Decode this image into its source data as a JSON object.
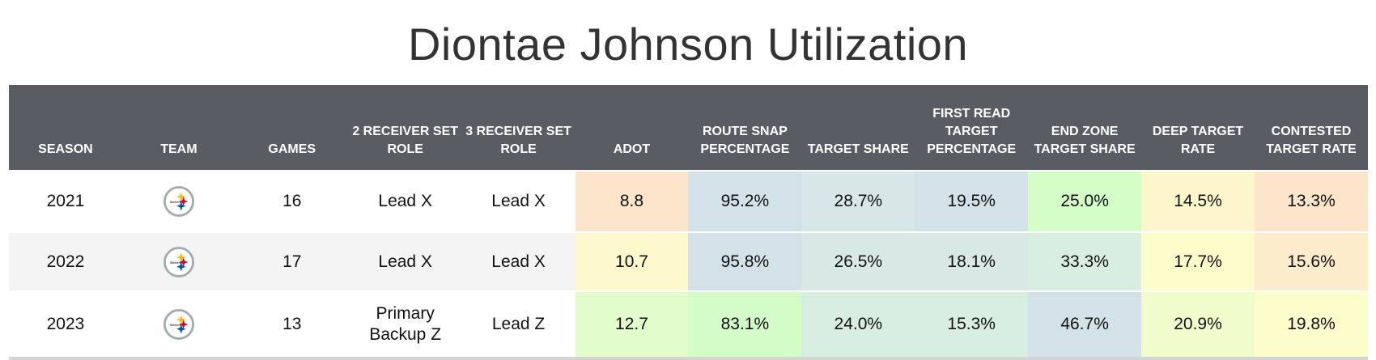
{
  "title": "Diontae Johnson Utilization",
  "columns": [
    "SEASON",
    "TEAM",
    "GAMES",
    "2 RECEIVER SET ROLE",
    "3 RECEIVER SET ROLE",
    "ADOT",
    "ROUTE SNAP PERCENTAGE",
    "TARGET SHARE",
    "FIRST READ TARGET PERCENTAGE",
    "END ZONE TARGET SHARE",
    "DEEP TARGET RATE",
    "CONTESTED TARGET RATE"
  ],
  "rows": [
    {
      "season": "2021",
      "team_icon": "steelers-logo",
      "games": "16",
      "role2": "Lead X",
      "role3": "Lead X",
      "adot": "8.8",
      "route": "95.2%",
      "target_share": "28.7%",
      "first_read": "19.5%",
      "end_zone": "25.0%",
      "deep": "14.5%",
      "contested": "13.3%",
      "colors": [
        "#fde5cc",
        "#d3e1e8",
        "#d7e6e6",
        "#d3e2e8",
        "#d4fdc8",
        "#fdf5cc",
        "#fde5cc"
      ]
    },
    {
      "season": "2022",
      "team_icon": "steelers-logo",
      "games": "17",
      "role2": "Lead X",
      "role3": "Lead X",
      "adot": "10.7",
      "route": "95.8%",
      "target_share": "26.5%",
      "first_read": "18.1%",
      "end_zone": "33.3%",
      "deep": "17.7%",
      "contested": "15.6%",
      "colors": [
        "#fdf9cc",
        "#d3e1e8",
        "#d8e8e4",
        "#d8e8e4",
        "#d8eee0",
        "#fdfdcc",
        "#fdeccc"
      ]
    },
    {
      "season": "2023",
      "team_icon": "steelers-logo",
      "games": "13",
      "role2": "Primary Backup Z",
      "role3": "Lead Z",
      "adot": "12.7",
      "route": "83.1%",
      "target_share": "24.0%",
      "first_read": "15.3%",
      "end_zone": "46.7%",
      "deep": "20.9%",
      "contested": "19.8%",
      "colors": [
        "#e3fccc",
        "#d4fcc8",
        "#d8eee0",
        "#d8eee0",
        "#d3e1e8",
        "#f1fccc",
        "#fdfdcc"
      ]
    }
  ],
  "header_color": "#595c62"
}
